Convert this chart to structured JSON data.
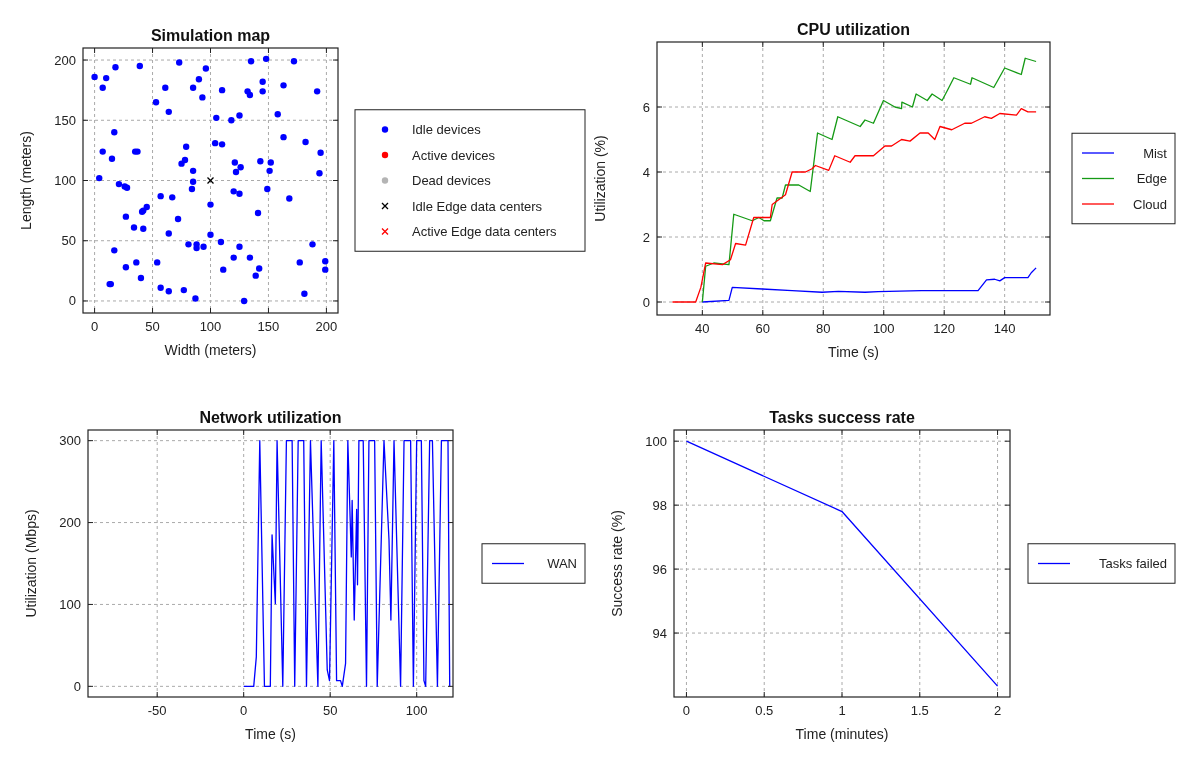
{
  "chart_data": [
    {
      "type": "scatter",
      "title": "Simulation map",
      "xlabel": "Width (meters)",
      "ylabel": "Length (meters)",
      "xlim": [
        -10,
        210
      ],
      "ylim": [
        -10,
        210
      ],
      "xticks": [
        0,
        50,
        100,
        150,
        200
      ],
      "yticks": [
        0,
        50,
        100,
        150,
        200
      ],
      "grid": true,
      "legend": "right",
      "series": [
        {
          "name": "Idle devices",
          "color": "#0000ff",
          "marker": "circle",
          "x": [
            0,
            10,
            18,
            39,
            73,
            96,
            135,
            148,
            172,
            7,
            61,
            85,
            90,
            110,
            132,
            134,
            145,
            145,
            163,
            192,
            53,
            93,
            64,
            105,
            118,
            125,
            158,
            17,
            163,
            182,
            195,
            7,
            15,
            35,
            37,
            79,
            78,
            75,
            85,
            104,
            110,
            121,
            126,
            122,
            143,
            152,
            151,
            194,
            4,
            21,
            26,
            28,
            85,
            84,
            120,
            125,
            149,
            57,
            67,
            168,
            100,
            45,
            41,
            42,
            27,
            72,
            141,
            34,
            42,
            64,
            100,
            17,
            81,
            88,
            88,
            94,
            109,
            125,
            188,
            120,
            134,
            36,
            54,
            27,
            177,
            199,
            199,
            111,
            142,
            139,
            40,
            13,
            14,
            57,
            64,
            77,
            87,
            129,
            181
          ],
          "values": [
            186,
            185,
            194,
            195,
            198,
            193,
            199,
            201,
            199,
            177,
            177,
            177,
            184,
            175,
            174,
            171,
            174,
            182,
            179,
            174,
            165,
            169,
            157,
            152,
            150,
            154,
            155,
            140,
            136,
            132,
            123,
            124,
            118,
            124,
            124,
            128,
            117,
            114,
            108,
            131,
            130,
            115,
            111,
            107,
            116,
            115,
            108,
            106,
            102,
            97,
            95,
            94,
            99,
            93,
            91,
            89,
            93,
            87,
            86,
            85,
            80,
            78,
            74,
            75,
            70,
            68,
            73,
            61,
            60,
            56,
            55,
            42,
            47,
            47,
            44,
            45,
            49,
            45,
            47,
            36,
            36,
            32,
            32,
            28,
            32,
            33,
            26,
            26,
            27,
            21,
            19,
            14,
            14,
            11,
            8,
            9,
            2,
            0,
            6
          ]
        },
        {
          "name": "Active devices",
          "color": "#ff0000",
          "marker": "circle"
        },
        {
          "name": "Dead devices",
          "color": "#b4b4b4",
          "marker": "circle"
        },
        {
          "name": "Idle Edge data centers",
          "color": "#000000",
          "marker": "cross",
          "x": [
            100
          ],
          "values": [
            100
          ]
        },
        {
          "name": "Active Edge data centers",
          "color": "#ff0000",
          "marker": "cross"
        }
      ]
    },
    {
      "type": "line",
      "title": "CPU utilization",
      "xlabel": "Time (s)",
      "ylabel": "Utilization (%)",
      "xlim": [
        25,
        155
      ],
      "ylim": [
        -0.4,
        8
      ],
      "xticks": [
        40,
        60,
        80,
        100,
        120,
        140
      ],
      "yticks": [
        0,
        2,
        4,
        6
      ],
      "grid": true,
      "legend": "right",
      "series": [
        {
          "name": "Mist",
          "color": "#0000ff",
          "x": [
            40,
            48.8,
            49.9,
            59.8,
            69.7,
            79.6,
            85,
            93.8,
            98.2,
            112.5,
            131.2,
            134,
            136.7,
            138.4,
            140,
            147.7,
            148.8,
            150.4
          ],
          "values": [
            0,
            0.05,
            0.45,
            0.4,
            0.35,
            0.3,
            0.33,
            0.3,
            0.32,
            0.35,
            0.35,
            0.68,
            0.7,
            0.65,
            0.75,
            0.75,
            0.9,
            1.05
          ]
        },
        {
          "name": "Edge",
          "color": "#159a15",
          "x": [
            40,
            41.1,
            43.8,
            48.8,
            50.4,
            56.5,
            58.7,
            60.4,
            62.5,
            64.7,
            66.4,
            67.5,
            71.9,
            75.7,
            78.1,
            82.9,
            84.8,
            92.2,
            93.8,
            96.6,
            99.9,
            103.7,
            105.9,
            106,
            109.5,
            110.7,
            114.4,
            116,
            119.3,
            121,
            123.2,
            128.7,
            129.2,
            136.4,
            140,
            145.5,
            146.8,
            150.4
          ],
          "values": [
            0,
            1.1,
            1.2,
            1.15,
            2.7,
            2.5,
            2.6,
            2.5,
            2.5,
            3.2,
            3.2,
            3.6,
            3.6,
            3.4,
            5.2,
            5,
            5.7,
            5.4,
            5.6,
            5.5,
            6.2,
            6,
            5.95,
            6.15,
            6,
            6.4,
            6.2,
            6.4,
            6.2,
            6.5,
            6.9,
            6.7,
            6.9,
            6.6,
            7.2,
            7,
            7.5,
            7.4
          ]
        },
        {
          "name": "Cloud",
          "color": "#ff0000",
          "x": [
            30.1,
            37.8,
            39.5,
            41.1,
            46.7,
            49.3,
            51,
            54.3,
            57,
            62.5,
            63.1,
            67.5,
            69.7,
            74.1,
            76.3,
            77.4,
            81.8,
            83.8,
            88.9,
            90.5,
            96.6,
            100.4,
            102.6,
            105.9,
            108.7,
            112,
            114.7,
            116.9,
            118.6,
            122.5,
            126.8,
            129,
            133.4,
            135.6,
            138.4,
            143.9,
            145.5,
            147.7,
            150.4
          ],
          "values": [
            0,
            0,
            0.45,
            1.2,
            1.15,
            1.3,
            1.8,
            1.75,
            2.6,
            2.6,
            3,
            3.3,
            4,
            4,
            4.1,
            4.2,
            4.05,
            4.5,
            4.3,
            4.5,
            4.5,
            4.8,
            4.8,
            5,
            4.95,
            5.2,
            5.2,
            5,
            5.4,
            5.3,
            5.5,
            5.5,
            5.7,
            5.65,
            5.8,
            5.75,
            5.95,
            5.85,
            5.85
          ]
        }
      ]
    },
    {
      "type": "line",
      "title": "Network utilization",
      "xlabel": "Time (s)",
      "ylabel": "Utilization (Mbps)",
      "xlim": [
        -90,
        121
      ],
      "ylim": [
        -13,
        313
      ],
      "xticks": [
        -50,
        0,
        50,
        100
      ],
      "yticks": [
        0,
        100,
        200,
        300
      ],
      "grid": true,
      "legend": "right",
      "series": [
        {
          "name": "WAN",
          "color": "#0000ff",
          "x": [
            0,
            5.8,
            7.3,
            9.3,
            12,
            15.4,
            16.4,
            18.3,
            19.3,
            22.6,
            24.7,
            28,
            29.5,
            31.5,
            34.7,
            36.3,
            38.6,
            42.9,
            44.8,
            48.3,
            49.6,
            52.1,
            53.7,
            56,
            57,
            58.9,
            60.2,
            62.2,
            62.7,
            63.9,
            65.3,
            65.8,
            66.6,
            69.1,
            71,
            72.4,
            75.7,
            77.2,
            81.1,
            84,
            85.1,
            86.9,
            90.7,
            92.7,
            96.5,
            98.1,
            100,
            102.7,
            104.2,
            105.2,
            107.5,
            109.1,
            112,
            114.3,
            118.1,
            119.1
          ],
          "values": [
            0,
            0,
            36,
            300,
            0,
            0,
            185,
            101,
            300,
            0,
            300,
            300,
            0,
            300,
            300,
            0,
            300,
            0,
            300,
            20,
            7,
            300,
            7,
            7,
            0,
            28,
            300,
            158,
            227,
            81,
            216,
            124,
            300,
            300,
            0,
            300,
            300,
            0,
            300,
            179,
            81,
            300,
            0,
            300,
            300,
            0,
            300,
            300,
            7,
            0,
            300,
            300,
            0,
            300,
            300,
            0
          ]
        }
      ]
    },
    {
      "type": "line",
      "title": "Tasks success rate",
      "xlabel": "Time (minutes)",
      "ylabel": "Success rate (%)",
      "xlim": [
        -0.08,
        2.08
      ],
      "ylim": [
        92,
        100.35
      ],
      "xticks": [
        0,
        0.5,
        1,
        1.5,
        2
      ],
      "yticks": [
        94,
        96,
        98,
        100
      ],
      "grid": true,
      "legend": "right",
      "series": [
        {
          "name": "Tasks failed",
          "color": "#0000ff",
          "x": [
            0,
            1,
            2
          ],
          "values": [
            100,
            97.8,
            92.34
          ]
        }
      ]
    }
  ]
}
